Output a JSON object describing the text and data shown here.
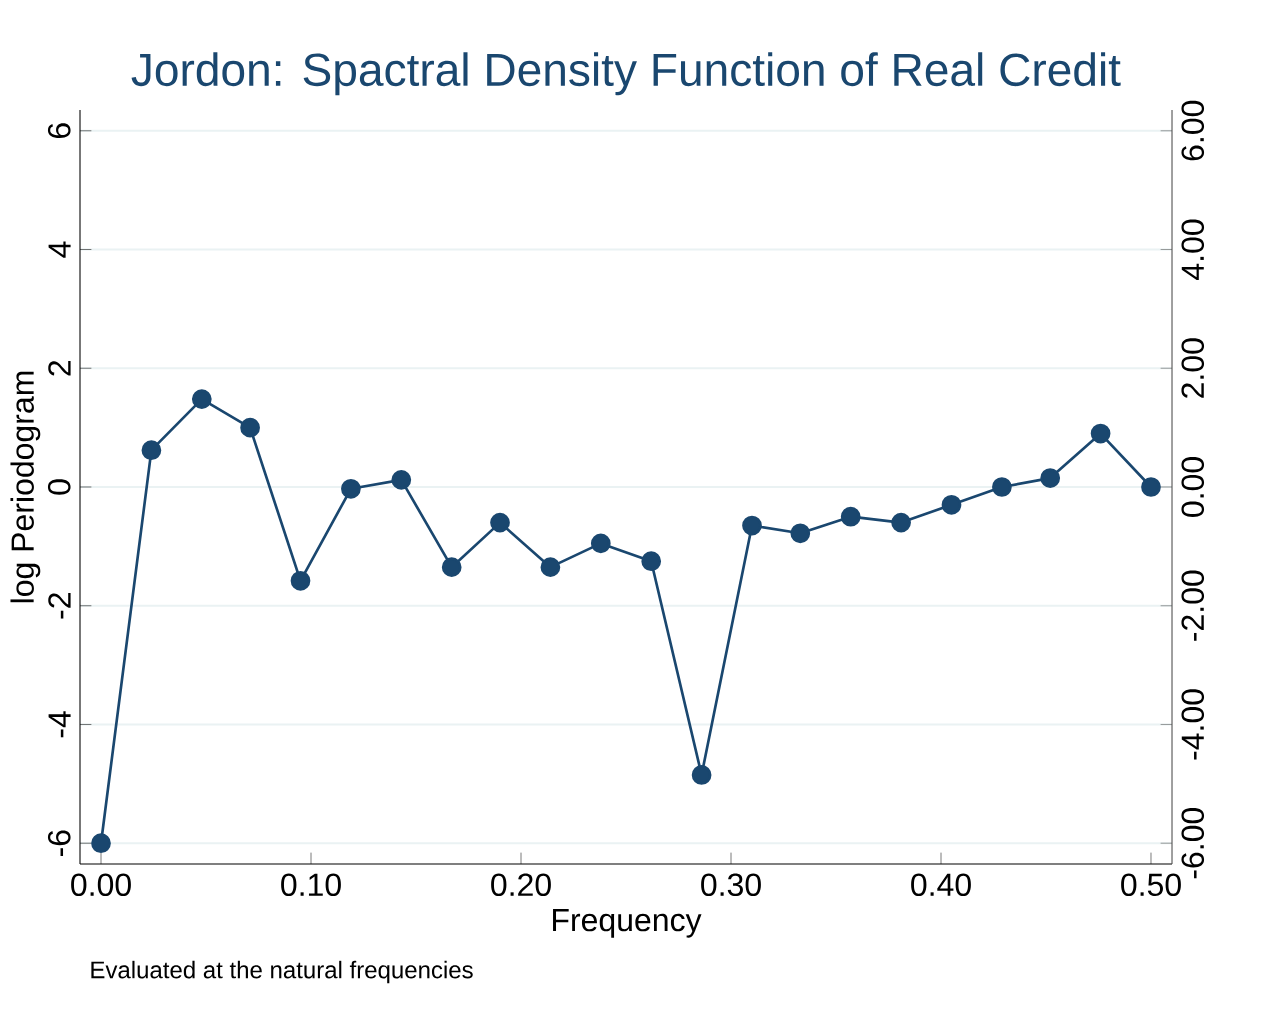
{
  "chart_data": {
    "type": "line",
    "title": "Jordon: Spactral Density Function of Real Credit",
    "xlabel": "Frequency",
    "ylabel": "log Periodogram",
    "annotations": [
      "Evaluated at the natural frequencies"
    ],
    "x": [
      0.0,
      0.024,
      0.048,
      0.071,
      0.095,
      0.119,
      0.143,
      0.167,
      0.19,
      0.214,
      0.238,
      0.262,
      0.286,
      0.31,
      0.333,
      0.357,
      0.381,
      0.405,
      0.429,
      0.452,
      0.476,
      0.5
    ],
    "series": [
      {
        "color": "#1a476f",
        "values": [
          -6.0,
          0.62,
          1.48,
          1.0,
          -1.58,
          -0.03,
          0.12,
          -1.35,
          -0.6,
          -1.35,
          -0.95,
          -1.25,
          -4.85,
          -0.65,
          -0.78,
          -0.5,
          -0.6,
          -0.3,
          0.0,
          0.15,
          0.9,
          0.0
        ]
      }
    ],
    "xlim": [
      -0.01,
      0.51
    ],
    "ylim": [
      -6.35,
      6.35
    ],
    "y2lim": [
      -6.35,
      6.35
    ],
    "xticks": [
      {
        "value": 0,
        "label": "0.00"
      },
      {
        "value": 0.1,
        "label": "0.10"
      },
      {
        "value": 0.2,
        "label": "0.20"
      },
      {
        "value": 0.3,
        "label": "0.30"
      },
      {
        "value": 0.4,
        "label": "0.40"
      },
      {
        "value": 0.5,
        "label": "0.50"
      }
    ],
    "yticks": [
      -6,
      -4,
      -2,
      0,
      2,
      4,
      6
    ],
    "y2ticks": [
      {
        "value": -6,
        "label": "-6.00"
      },
      {
        "value": -4,
        "label": "-4.00"
      },
      {
        "value": -2,
        "label": "-2.00"
      },
      {
        "value": 0,
        "label": "0.00"
      },
      {
        "value": 2,
        "label": "2.00"
      },
      {
        "value": 4,
        "label": "4.00"
      },
      {
        "value": 6,
        "label": "6.00"
      }
    ],
    "grid": "y",
    "marker": "circle",
    "line_style": "solid"
  }
}
